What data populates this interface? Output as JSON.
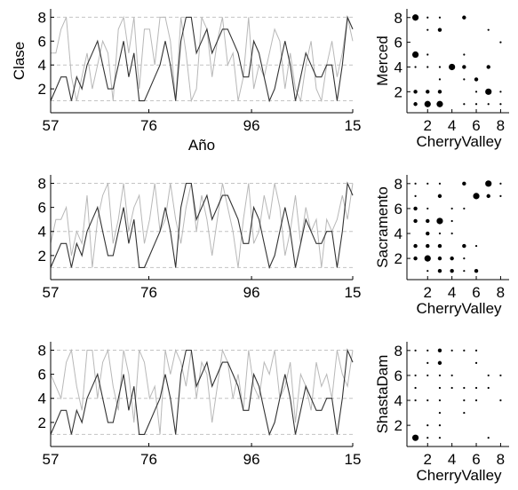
{
  "chart_data": [
    {
      "type": "line",
      "ylabel": "Clase",
      "xlabel": "Año",
      "xtick_labels": [
        "57",
        "76",
        "96",
        "15"
      ],
      "xlim": [
        57,
        115
      ],
      "ylim": [
        0,
        8.7
      ],
      "yticks": [
        2,
        4,
        6,
        8
      ],
      "ref_lines": [
        1,
        4,
        8
      ],
      "series": [
        {
          "color": "#b8b8b8",
          "values": [
            5,
            5,
            7,
            8,
            3,
            1,
            3,
            5,
            2,
            4,
            6,
            5,
            1,
            7,
            8,
            5,
            8,
            2,
            7,
            7,
            4,
            8,
            8,
            6,
            1,
            8,
            5,
            1,
            2,
            8,
            7,
            3,
            6,
            8,
            4,
            5,
            1,
            3,
            8,
            2,
            4,
            3,
            5,
            7,
            6,
            2,
            5,
            2,
            1,
            4,
            6,
            2,
            1,
            4,
            6,
            3,
            5,
            8,
            6
          ]
        },
        {
          "color": "#333333",
          "values": [
            1,
            2,
            3,
            3,
            1,
            3,
            2,
            4,
            5,
            6,
            4,
            2,
            2,
            4,
            6,
            3,
            5,
            1,
            1,
            2,
            3,
            4,
            6,
            4,
            1,
            6,
            8,
            8,
            5,
            6,
            7,
            5,
            6,
            7,
            7,
            6,
            5,
            3,
            3,
            6,
            5,
            3,
            1,
            2,
            4,
            6,
            4,
            1,
            3,
            5,
            4,
            3,
            3,
            4,
            4,
            1,
            4,
            8,
            7
          ]
        }
      ]
    },
    {
      "type": "scatter",
      "ylabel": "Merced",
      "xlabel": "CherryValley",
      "xticks": [
        2,
        4,
        6,
        8
      ],
      "yticks": [
        2,
        4,
        6,
        8
      ],
      "xlim": [
        0.3,
        8.7
      ],
      "ylim": [
        0.3,
        8.7
      ],
      "points": [
        {
          "x": 1,
          "y": 8,
          "s": 2
        },
        {
          "x": 2,
          "y": 8,
          "s": 0
        },
        {
          "x": 3,
          "y": 8,
          "s": 0
        },
        {
          "x": 5,
          "y": 8,
          "s": 1
        },
        {
          "x": 3,
          "y": 7,
          "s": 1
        },
        {
          "x": 2,
          "y": 7,
          "s": 0
        },
        {
          "x": 7,
          "y": 7,
          "s": 0
        },
        {
          "x": 8,
          "y": 6,
          "s": 0
        },
        {
          "x": 1,
          "y": 5,
          "s": 2
        },
        {
          "x": 2,
          "y": 5,
          "s": 0
        },
        {
          "x": 5,
          "y": 5,
          "s": 0
        },
        {
          "x": 1,
          "y": 4,
          "s": 0
        },
        {
          "x": 2,
          "y": 4,
          "s": 0
        },
        {
          "x": 3,
          "y": 4,
          "s": 0
        },
        {
          "x": 4,
          "y": 4,
          "s": 2
        },
        {
          "x": 5,
          "y": 4,
          "s": 1
        },
        {
          "x": 7,
          "y": 4,
          "s": 1
        },
        {
          "x": 3,
          "y": 3,
          "s": 0
        },
        {
          "x": 6,
          "y": 3,
          "s": 1
        },
        {
          "x": 5,
          "y": 3,
          "s": 0
        },
        {
          "x": 1,
          "y": 2,
          "s": 1
        },
        {
          "x": 2,
          "y": 2,
          "s": 1
        },
        {
          "x": 3,
          "y": 2,
          "s": 1
        },
        {
          "x": 6,
          "y": 2,
          "s": 0
        },
        {
          "x": 7,
          "y": 2,
          "s": 2
        },
        {
          "x": 8,
          "y": 2,
          "s": 0
        },
        {
          "x": 1,
          "y": 1,
          "s": 1
        },
        {
          "x": 2,
          "y": 1,
          "s": 2
        },
        {
          "x": 3,
          "y": 1,
          "s": 2
        },
        {
          "x": 5,
          "y": 1,
          "s": 0
        },
        {
          "x": 6,
          "y": 1,
          "s": 0
        },
        {
          "x": 7,
          "y": 1,
          "s": 0
        },
        {
          "x": 8,
          "y": 1,
          "s": 0
        }
      ]
    },
    {
      "type": "line",
      "ylabel": "",
      "xlabel": "",
      "xtick_labels": [
        "57",
        "76",
        "96",
        "15"
      ],
      "xlim": [
        57,
        115
      ],
      "ylim": [
        0,
        8.7
      ],
      "yticks": [
        2,
        4,
        6,
        8
      ],
      "ref_lines": [
        1,
        4,
        8
      ],
      "series": [
        {
          "color": "#b8b8b8",
          "values": [
            3,
            5,
            5,
            6,
            2,
            4,
            3,
            7,
            1,
            5,
            7,
            8,
            3,
            5,
            8,
            4,
            6,
            7,
            3,
            5,
            8,
            4,
            5,
            8,
            5,
            3,
            6,
            8,
            4,
            7,
            5,
            2,
            5,
            8,
            6,
            4,
            1,
            5,
            8,
            3,
            4,
            7,
            5,
            8,
            6,
            2,
            4,
            7,
            3,
            6,
            4,
            5,
            1,
            5,
            4,
            5,
            7,
            5,
            8
          ]
        },
        {
          "color": "#333333",
          "values": [
            1,
            2,
            3,
            3,
            1,
            3,
            2,
            4,
            5,
            6,
            4,
            2,
            2,
            4,
            6,
            3,
            5,
            1,
            1,
            2,
            3,
            4,
            6,
            4,
            1,
            6,
            8,
            8,
            5,
            6,
            7,
            5,
            6,
            7,
            7,
            6,
            5,
            3,
            3,
            6,
            5,
            3,
            1,
            2,
            4,
            6,
            4,
            1,
            3,
            5,
            4,
            3,
            3,
            4,
            4,
            1,
            4,
            8,
            7
          ]
        }
      ]
    },
    {
      "type": "scatter",
      "ylabel": "Sacramento",
      "xlabel": "CherryValley",
      "xticks": [
        2,
        4,
        6,
        8
      ],
      "yticks": [
        2,
        4,
        6,
        8
      ],
      "xlim": [
        0.3,
        8.7
      ],
      "ylim": [
        0.3,
        8.7
      ],
      "points": [
        {
          "x": 1,
          "y": 8,
          "s": 0
        },
        {
          "x": 2,
          "y": 8,
          "s": 0
        },
        {
          "x": 3,
          "y": 8,
          "s": 0
        },
        {
          "x": 5,
          "y": 8,
          "s": 1
        },
        {
          "x": 7,
          "y": 8,
          "s": 2
        },
        {
          "x": 8,
          "y": 8,
          "s": 0
        },
        {
          "x": 1,
          "y": 7,
          "s": 0
        },
        {
          "x": 3,
          "y": 7,
          "s": 1
        },
        {
          "x": 6,
          "y": 7,
          "s": 2
        },
        {
          "x": 7,
          "y": 7,
          "s": 1
        },
        {
          "x": 8,
          "y": 7,
          "s": 0
        },
        {
          "x": 1,
          "y": 6,
          "s": 1
        },
        {
          "x": 2,
          "y": 6,
          "s": 0
        },
        {
          "x": 4,
          "y": 6,
          "s": 0
        },
        {
          "x": 5,
          "y": 6,
          "s": 0
        },
        {
          "x": 1,
          "y": 5,
          "s": 1
        },
        {
          "x": 2,
          "y": 5,
          "s": 1
        },
        {
          "x": 3,
          "y": 5,
          "s": 2
        },
        {
          "x": 4,
          "y": 5,
          "s": 0
        },
        {
          "x": 2,
          "y": 4,
          "s": 1
        },
        {
          "x": 3,
          "y": 4,
          "s": 0
        },
        {
          "x": 4,
          "y": 4,
          "s": 0
        },
        {
          "x": 1,
          "y": 3,
          "s": 1
        },
        {
          "x": 2,
          "y": 3,
          "s": 1
        },
        {
          "x": 3,
          "y": 3,
          "s": 1
        },
        {
          "x": 5,
          "y": 3,
          "s": 1
        },
        {
          "x": 6,
          "y": 3,
          "s": 0
        },
        {
          "x": 1,
          "y": 2,
          "s": 1
        },
        {
          "x": 2,
          "y": 2,
          "s": 2
        },
        {
          "x": 3,
          "y": 2,
          "s": 1
        },
        {
          "x": 4,
          "y": 2,
          "s": 1
        },
        {
          "x": 5,
          "y": 2,
          "s": 0
        },
        {
          "x": 2,
          "y": 1,
          "s": 0
        },
        {
          "x": 3,
          "y": 1,
          "s": 1
        },
        {
          "x": 4,
          "y": 1,
          "s": 1
        },
        {
          "x": 5,
          "y": 1,
          "s": 0
        },
        {
          "x": 6,
          "y": 1,
          "s": 1
        }
      ]
    },
    {
      "type": "line",
      "ylabel": "",
      "xlabel": "",
      "xtick_labels": [
        "57",
        "76",
        "96",
        "15"
      ],
      "xlim": [
        57,
        115
      ],
      "ylim": [
        0,
        8.7
      ],
      "yticks": [
        2,
        4,
        6,
        8
      ],
      "ref_lines": [
        1,
        4,
        8
      ],
      "series": [
        {
          "color": "#b8b8b8",
          "values": [
            6,
            5,
            4,
            7,
            8,
            5,
            3,
            8,
            8,
            4,
            7,
            8,
            5,
            3,
            8,
            6,
            2,
            8,
            7,
            4,
            5,
            1,
            8,
            6,
            8,
            7,
            5,
            8,
            4,
            7,
            6,
            2,
            5,
            8,
            7,
            4,
            6,
            3,
            8,
            5,
            4,
            7,
            6,
            8,
            4,
            5,
            7,
            2,
            6,
            5,
            3,
            7,
            5,
            6,
            4,
            8,
            6,
            5,
            8
          ]
        },
        {
          "color": "#333333",
          "values": [
            1,
            2,
            3,
            3,
            1,
            3,
            2,
            4,
            5,
            6,
            4,
            2,
            2,
            4,
            6,
            3,
            5,
            1,
            1,
            2,
            3,
            4,
            6,
            4,
            1,
            6,
            8,
            8,
            5,
            6,
            7,
            5,
            6,
            7,
            7,
            6,
            5,
            3,
            3,
            6,
            5,
            3,
            1,
            2,
            4,
            6,
            4,
            1,
            3,
            5,
            4,
            3,
            3,
            4,
            4,
            1,
            4,
            8,
            7
          ]
        }
      ]
    },
    {
      "type": "scatter",
      "ylabel": "ShastaDam",
      "xlabel": "CherryValley",
      "xticks": [
        2,
        4,
        6,
        8
      ],
      "yticks": [
        2,
        4,
        6,
        8
      ],
      "xlim": [
        0.3,
        8.7
      ],
      "ylim": [
        0.3,
        8.7
      ],
      "points": [
        {
          "x": 1,
          "y": 8,
          "s": 0
        },
        {
          "x": 2,
          "y": 8,
          "s": 0
        },
        {
          "x": 3,
          "y": 8,
          "s": 1
        },
        {
          "x": 4,
          "y": 8,
          "s": 0
        },
        {
          "x": 5,
          "y": 8,
          "s": 0
        },
        {
          "x": 6,
          "y": 8,
          "s": 0
        },
        {
          "x": 2,
          "y": 7,
          "s": 0
        },
        {
          "x": 3,
          "y": 7,
          "s": 1
        },
        {
          "x": 6,
          "y": 7,
          "s": 0
        },
        {
          "x": 1,
          "y": 6,
          "s": 0
        },
        {
          "x": 2,
          "y": 6,
          "s": 0
        },
        {
          "x": 3,
          "y": 6,
          "s": 0
        },
        {
          "x": 4,
          "y": 6,
          "s": 0
        },
        {
          "x": 7,
          "y": 6,
          "s": 0
        },
        {
          "x": 8,
          "y": 6,
          "s": 0
        },
        {
          "x": 1,
          "y": 5,
          "s": 0
        },
        {
          "x": 3,
          "y": 5,
          "s": 0
        },
        {
          "x": 4,
          "y": 5,
          "s": 0
        },
        {
          "x": 5,
          "y": 5,
          "s": 0
        },
        {
          "x": 6,
          "y": 5,
          "s": 0
        },
        {
          "x": 7,
          "y": 5,
          "s": 0
        },
        {
          "x": 1,
          "y": 4,
          "s": 0
        },
        {
          "x": 2,
          "y": 4,
          "s": 0
        },
        {
          "x": 3,
          "y": 4,
          "s": 0
        },
        {
          "x": 5,
          "y": 4,
          "s": 0
        },
        {
          "x": 6,
          "y": 4,
          "s": 0
        },
        {
          "x": 8,
          "y": 4,
          "s": 0
        },
        {
          "x": 3,
          "y": 3,
          "s": 0
        },
        {
          "x": 5,
          "y": 3,
          "s": 0
        },
        {
          "x": 2,
          "y": 2,
          "s": 0
        },
        {
          "x": 3,
          "y": 2,
          "s": 0
        },
        {
          "x": 1,
          "y": 1,
          "s": 2
        },
        {
          "x": 2,
          "y": 1,
          "s": 0
        },
        {
          "x": 3,
          "y": 1,
          "s": 0
        },
        {
          "x": 7,
          "y": 1,
          "s": 0
        }
      ]
    }
  ]
}
